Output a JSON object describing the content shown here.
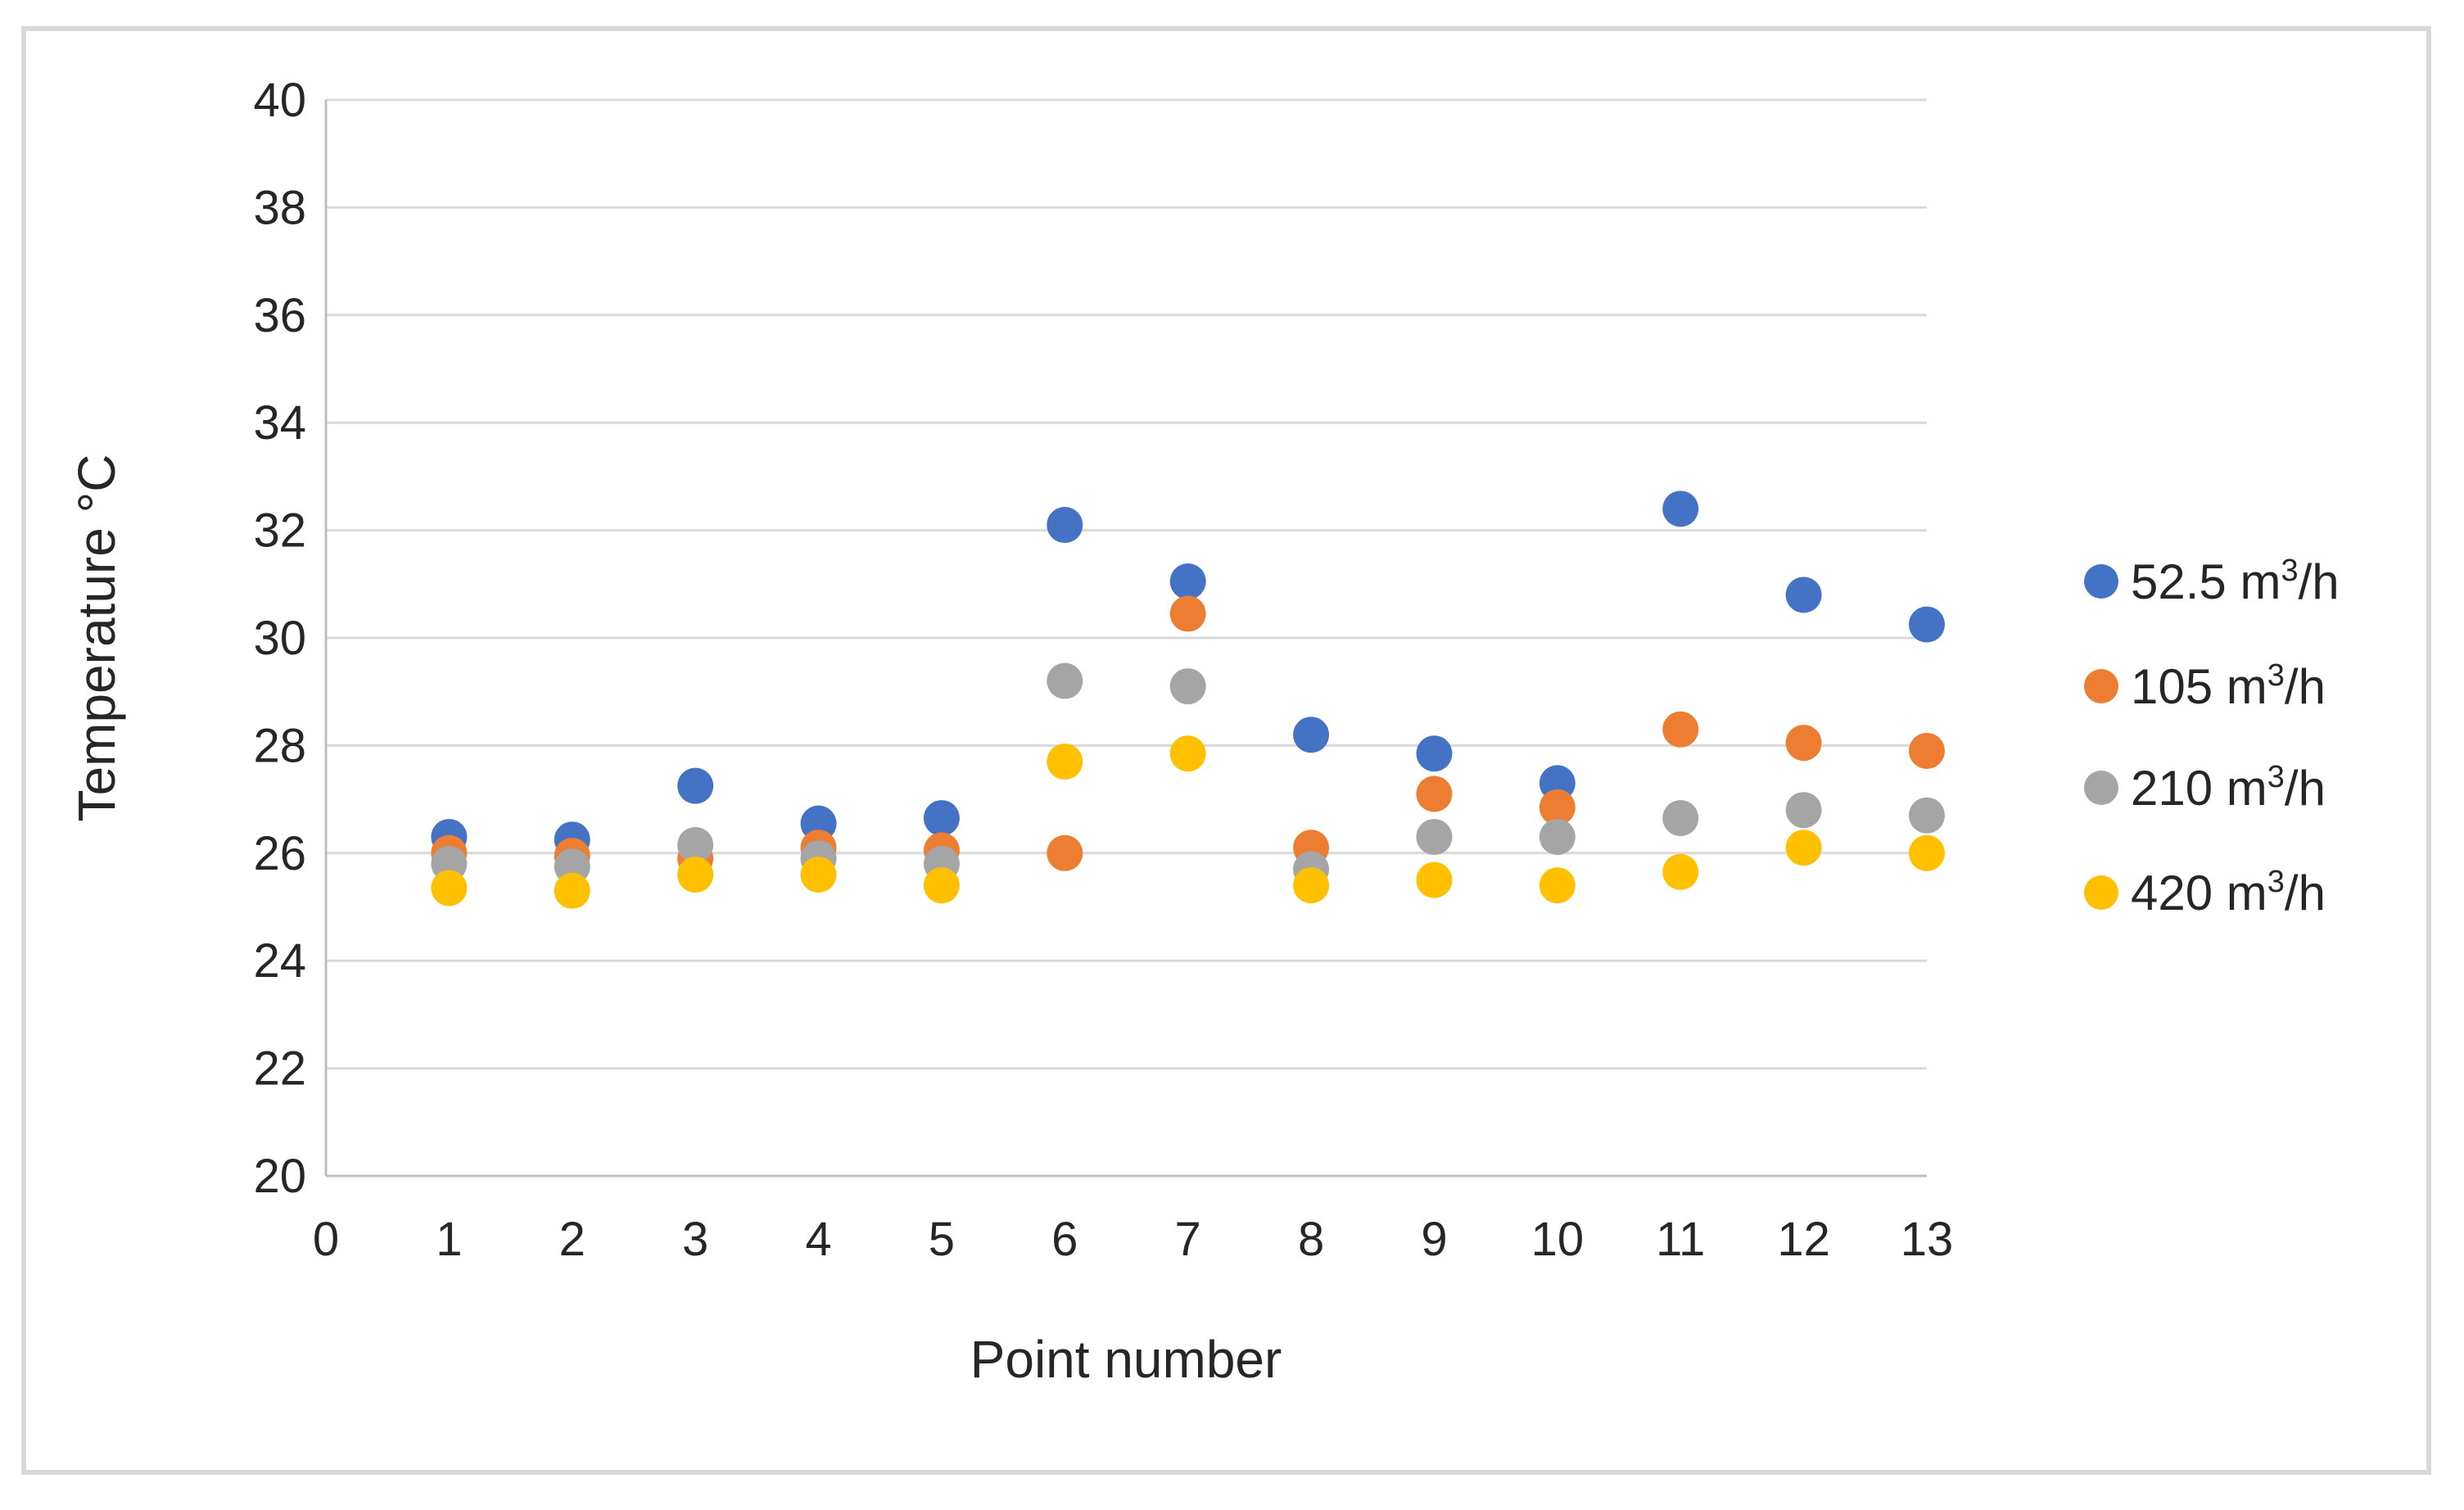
{
  "chart_data": {
    "type": "scatter",
    "title": "",
    "xlabel": "Point number",
    "ylabel": "Temperature °C",
    "xlim": [
      0,
      13
    ],
    "ylim": [
      20,
      40
    ],
    "x_ticks": [
      0,
      1,
      2,
      3,
      4,
      5,
      6,
      7,
      8,
      9,
      10,
      11,
      12,
      13
    ],
    "y_ticks": [
      20,
      22,
      24,
      26,
      28,
      30,
      32,
      34,
      36,
      38,
      40
    ],
    "grid": "horizontal-only",
    "legend_position": "right",
    "x": [
      1,
      2,
      3,
      4,
      5,
      6,
      7,
      8,
      9,
      10,
      11,
      12,
      13
    ],
    "series": [
      {
        "name": "52.5 m³/h",
        "label_base": "52.5 m",
        "label_sup": "3",
        "label_suffix": "/h",
        "color": "#4472C4",
        "values": [
          26.3,
          26.25,
          27.25,
          26.55,
          26.65,
          32.1,
          31.05,
          28.2,
          27.85,
          27.3,
          32.4,
          30.8,
          30.25
        ]
      },
      {
        "name": "105 m³/h",
        "label_base": "105 m",
        "label_sup": "3",
        "label_suffix": "/h",
        "color": "#ED7D31",
        "values": [
          26.0,
          25.95,
          25.9,
          26.1,
          26.05,
          26.0,
          30.45,
          26.1,
          27.1,
          26.85,
          28.3,
          28.05,
          27.9
        ]
      },
      {
        "name": "210 m³/h",
        "label_base": "210 m",
        "label_sup": "3",
        "label_suffix": "/h",
        "color": "#A5A5A5",
        "values": [
          25.8,
          25.75,
          26.15,
          25.9,
          25.8,
          29.2,
          29.1,
          25.7,
          26.3,
          26.3,
          26.65,
          26.8,
          26.7
        ]
      },
      {
        "name": "420 m³/h",
        "label_base": "420 m",
        "label_sup": "3",
        "label_suffix": "/h",
        "color": "#FFC000",
        "values": [
          25.35,
          25.3,
          25.6,
          25.6,
          25.4,
          27.7,
          27.85,
          25.4,
          25.5,
          25.4,
          25.65,
          26.1,
          26.0
        ]
      }
    ]
  },
  "colors": {
    "background": "#FFFFFF",
    "frame": "#D8D8D8",
    "gridline": "#D9D9D9",
    "axis_line": "#BFBFBF",
    "text": "#262626"
  }
}
